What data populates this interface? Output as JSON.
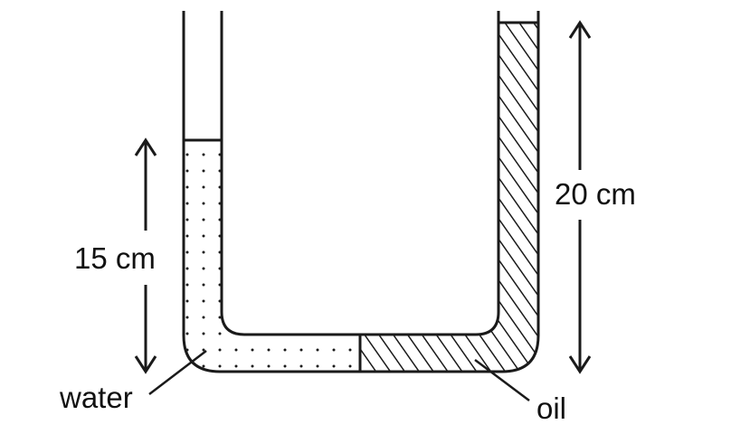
{
  "labels": {
    "water_height": "15 cm",
    "oil_height": "20 cm",
    "water": "water",
    "oil": "oil"
  },
  "colors": {
    "stroke": "#1a1a1a",
    "background": "#ffffff"
  }
}
